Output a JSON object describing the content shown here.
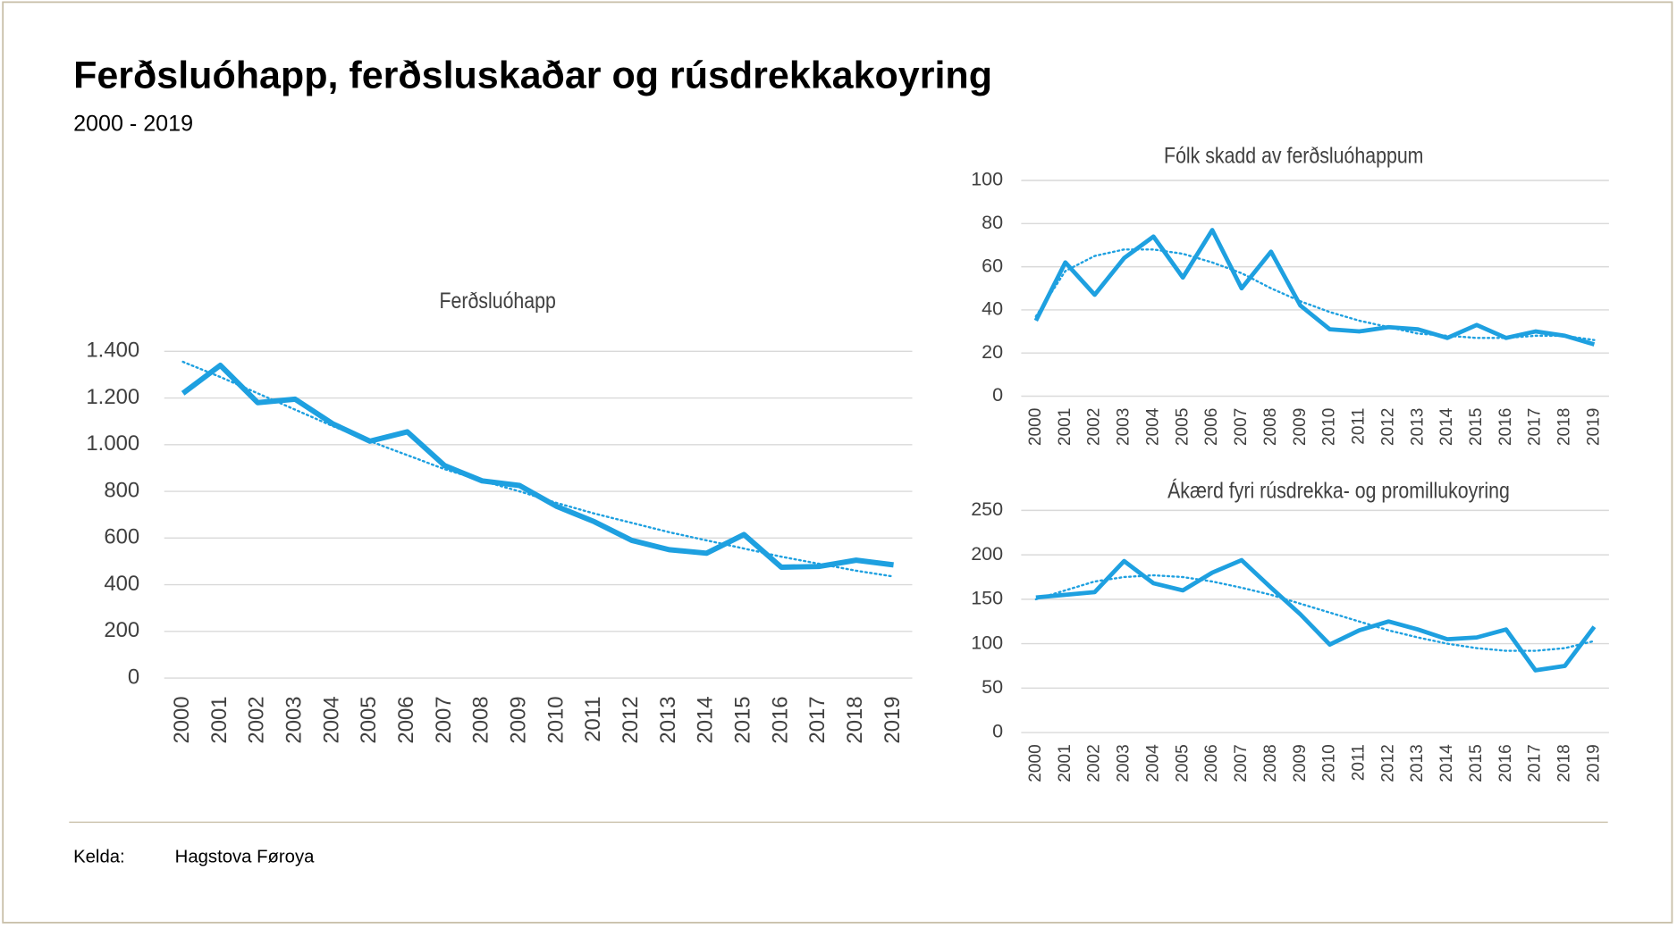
{
  "title": "Ferðsluóhapp, ferðsluskaðar og rúsdrekkakoyring",
  "subtitle": "2000 - 2019",
  "source": {
    "label": "Kelda:",
    "text": "Hagstova Føroya"
  },
  "chart_data": [
    {
      "type": "line",
      "title": "Ferðsluóhapp",
      "categories": [
        "2000",
        "2001",
        "2002",
        "2003",
        "2004",
        "2005",
        "2006",
        "2007",
        "2008",
        "2009",
        "2010",
        "2011",
        "2012",
        "2013",
        "2014",
        "2015",
        "2016",
        "2017",
        "2018",
        "2019"
      ],
      "series": [
        {
          "color": "#1ea0e0",
          "values": [
            1220,
            1340,
            1180,
            1195,
            1090,
            1015,
            1055,
            910,
            845,
            825,
            735,
            670,
            590,
            550,
            535,
            615,
            475,
            478,
            505,
            485
          ]
        }
      ],
      "trendline": {
        "color": "#1ea0e0",
        "values": [
          1355,
          1290,
          1220,
          1150,
          1080,
          1015,
          955,
          895,
          845,
          800,
          750,
          705,
          665,
          625,
          590,
          555,
          520,
          490,
          460,
          435
        ]
      },
      "ylim": [
        0,
        1400
      ],
      "yticks": [
        0,
        200,
        400,
        600,
        800,
        {
          "value": 1000,
          "label": "1.000"
        },
        {
          "value": 1200,
          "label": "1.200"
        },
        {
          "value": 1400,
          "label": "1.400"
        }
      ],
      "grid": true
    },
    {
      "type": "line",
      "title": "Fólk skadd av ferðsluóhappum",
      "categories": [
        "2000",
        "2001",
        "2002",
        "2003",
        "2004",
        "2005",
        "2006",
        "2007",
        "2008",
        "2009",
        "2010",
        "2011",
        "2012",
        "2013",
        "2014",
        "2015",
        "2016",
        "2017",
        "2018",
        "2019"
      ],
      "series": [
        {
          "color": "#1ea0e0",
          "values": [
            35,
            62,
            47,
            64,
            74,
            55,
            77,
            50,
            67,
            42,
            31,
            30,
            32,
            31,
            27,
            33,
            27,
            30,
            28,
            24
          ]
        }
      ],
      "trendline": {
        "color": "#1ea0e0",
        "values": [
          37,
          58,
          65,
          68,
          68,
          66,
          62,
          57,
          50,
          44,
          39,
          35,
          32,
          29,
          28,
          27,
          27,
          28,
          28,
          26
        ]
      },
      "ylim": [
        0,
        100
      ],
      "yticks": [
        0,
        20,
        40,
        60,
        80,
        100
      ],
      "grid": true
    },
    {
      "type": "line",
      "title": "Ákærd fyri rúsdrekka- og promillukoyring",
      "categories": [
        "2000",
        "2001",
        "2002",
        "2003",
        "2004",
        "2005",
        "2006",
        "2007",
        "2008",
        "2009",
        "2010",
        "2011",
        "2012",
        "2013",
        "2014",
        "2015",
        "2016",
        "2017",
        "2018",
        "2019"
      ],
      "series": [
        {
          "color": "#1ea0e0",
          "values": [
            152,
            155,
            158,
            193,
            168,
            160,
            180,
            194,
            163,
            133,
            99,
            115,
            125,
            116,
            105,
            107,
            116,
            70,
            75,
            119
          ]
        }
      ],
      "trendline": {
        "color": "#1ea0e0",
        "values": [
          150,
          160,
          170,
          175,
          177,
          175,
          170,
          163,
          155,
          145,
          135,
          125,
          115,
          107,
          100,
          95,
          92,
          92,
          95,
          103
        ]
      },
      "ylim": [
        0,
        250
      ],
      "yticks": [
        0,
        50,
        100,
        150,
        200,
        250
      ],
      "grid": true
    }
  ]
}
